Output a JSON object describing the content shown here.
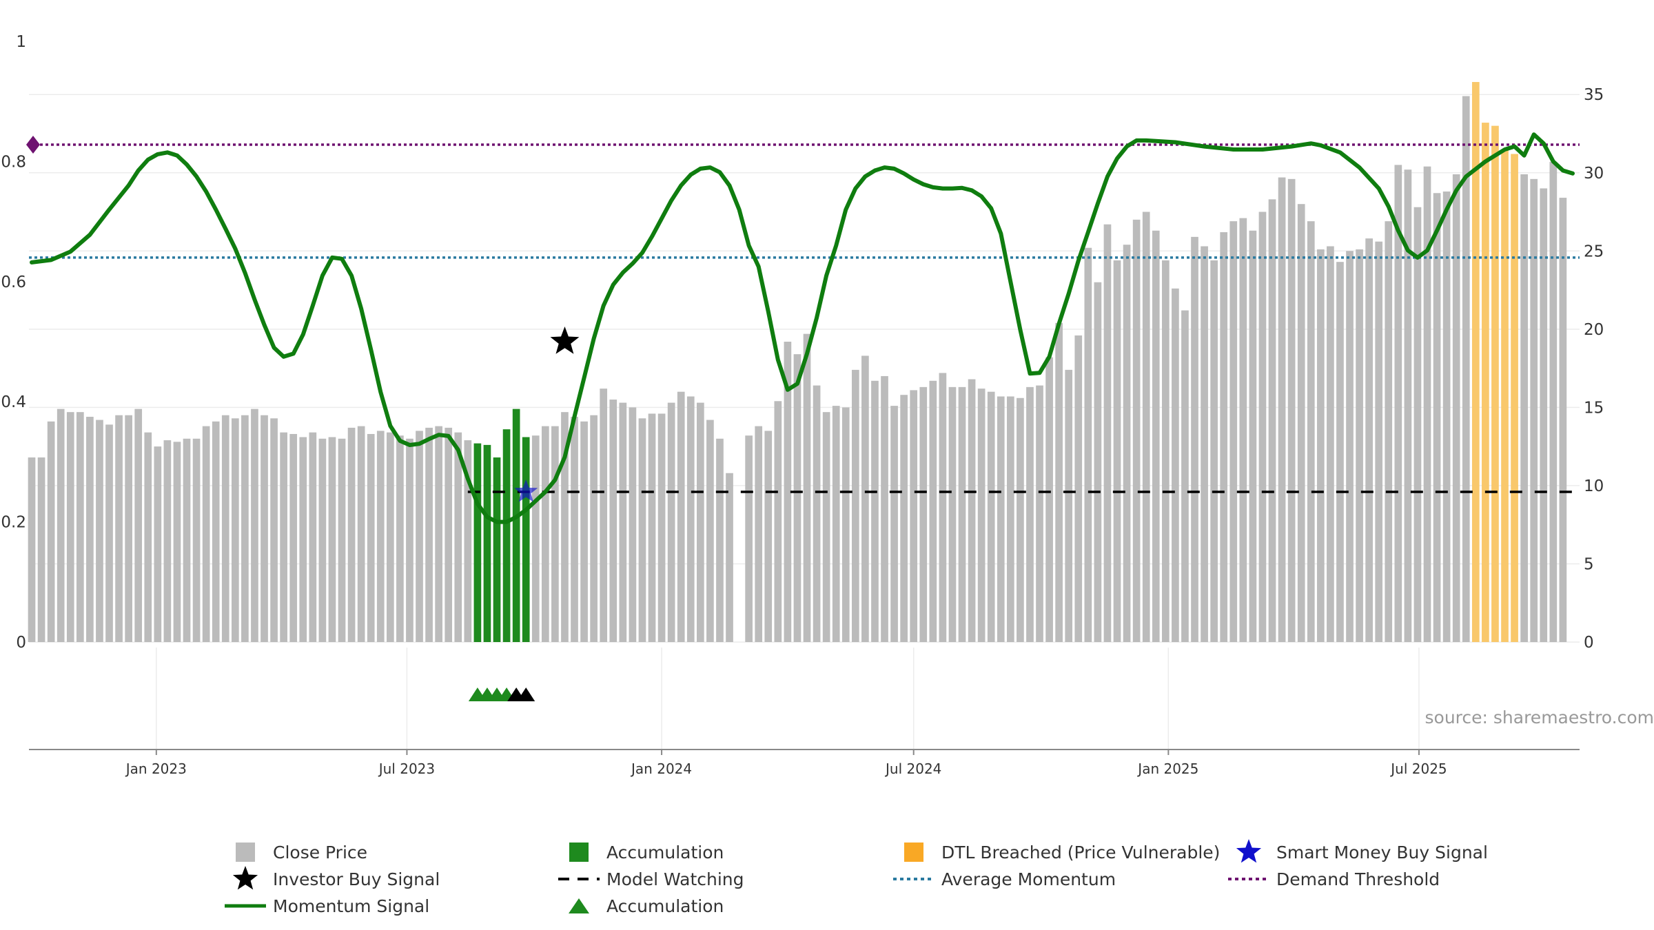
{
  "source_text": "source: sharemaestro.com",
  "chart_data": {
    "type": "bar",
    "title": "",
    "x_range": [
      "2022-10-01",
      "2025-10-25"
    ],
    "x_ticks": [
      {
        "date": "2023-01-01",
        "label": "Jan 2023"
      },
      {
        "date": "2023-07-01",
        "label": "Jul 2023"
      },
      {
        "date": "2024-01-01",
        "label": "Jan 2024"
      },
      {
        "date": "2024-07-01",
        "label": "Jul 2024"
      },
      {
        "date": "2025-01-01",
        "label": "Jan 2025"
      },
      {
        "date": "2025-07-01",
        "label": "Jul 2025"
      }
    ],
    "left_axis": {
      "ylim": [
        0,
        1
      ],
      "ticks": [
        0,
        0.2,
        0.4,
        0.6,
        0.8,
        1
      ],
      "tick_labels": [
        "0",
        "0.2",
        "0.4",
        "0.6",
        "0.8",
        "1"
      ]
    },
    "right_axis": {
      "ylim": [
        0,
        38.4
      ],
      "ticks": [
        0,
        5,
        10,
        15,
        20,
        25,
        30,
        35
      ],
      "tick_labels": [
        "0",
        "5",
        "10",
        "15",
        "20",
        "25",
        "30",
        "35"
      ]
    },
    "bar_start": "2022-10-03",
    "bar_step_days": 7,
    "close_price": [
      11.8,
      11.8,
      14.1,
      14.9,
      14.7,
      14.7,
      14.4,
      14.2,
      13.9,
      14.5,
      14.5,
      14.9,
      13.4,
      12.5,
      12.9,
      12.8,
      13,
      13,
      13.8,
      14.1,
      14.5,
      14.3,
      14.5,
      14.9,
      14.5,
      14.3,
      13.4,
      13.3,
      13.1,
      13.4,
      13,
      13.1,
      13,
      13.7,
      13.8,
      13.3,
      13.5,
      13.4,
      13.2,
      13,
      13.5,
      13.7,
      13.8,
      13.7,
      13.4,
      12.9,
      12.7,
      12.6,
      11.8,
      13.6,
      14.9,
      13.1,
      13.2,
      13.8,
      13.8,
      14.7,
      14.4,
      14.1,
      14.5,
      16.2,
      15.5,
      15.3,
      15.0,
      14.3,
      14.6,
      14.6,
      15.3,
      16,
      15.7,
      15.3,
      14.2,
      13,
      10.8,
      null,
      13.2,
      13.8,
      13.5,
      15.4,
      19.2,
      18.4,
      19.7,
      16.4,
      14.7,
      15.1,
      15,
      17.4,
      18.3,
      16.7,
      17,
      15.1,
      15.8,
      16.1,
      16.3,
      16.7,
      17.2,
      16.3,
      16.3,
      16.8,
      16.2,
      16,
      15.7,
      15.7,
      15.6,
      16.3,
      16.4,
      18.2,
      20.4,
      17.4,
      19.6,
      25.2,
      23,
      26.7,
      24.4,
      25.4,
      27,
      27.5,
      26.3,
      24.4,
      22.6,
      21.2,
      25.9,
      25.3,
      24.4,
      26.2,
      26.9,
      27.1,
      26.3,
      27.5,
      28.3,
      29.7,
      29.6,
      28,
      26.9,
      25.1,
      25.3,
      24.3,
      25,
      25.1,
      25.8,
      25.6,
      26.9,
      30.5,
      30.2,
      27.8,
      30.4,
      28.7,
      28.8,
      29.9,
      34.9,
      35.8,
      33.2,
      33,
      31.5,
      31.2,
      29.9,
      29.6,
      29,
      30.7,
      28.4
    ],
    "bar_colors": {
      "close": "#bbbbbb",
      "accumulation": "#1e8a1e",
      "dtl": "#f9c86b"
    },
    "accumulation_bar_indices": [
      46,
      47,
      48,
      49,
      50,
      51
    ],
    "dtl_bar_indices": [
      149,
      150,
      151,
      152,
      153
    ],
    "momentum_signal": [
      [
        0,
        0.632
      ],
      [
        2,
        0.636
      ],
      [
        4,
        0.65
      ],
      [
        6,
        0.678
      ],
      [
        8,
        0.72
      ],
      [
        10,
        0.76
      ],
      [
        11,
        0.785
      ],
      [
        12,
        0.803
      ],
      [
        13,
        0.812
      ],
      [
        14,
        0.815
      ],
      [
        15,
        0.81
      ],
      [
        16,
        0.795
      ],
      [
        17,
        0.775
      ],
      [
        18,
        0.75
      ],
      [
        19,
        0.72
      ],
      [
        20,
        0.688
      ],
      [
        21,
        0.655
      ],
      [
        22,
        0.615
      ],
      [
        23,
        0.57
      ],
      [
        24,
        0.528
      ],
      [
        25,
        0.49
      ],
      [
        26,
        0.475
      ],
      [
        27,
        0.48
      ],
      [
        28,
        0.512
      ],
      [
        29,
        0.56
      ],
      [
        30,
        0.61
      ],
      [
        31,
        0.64
      ],
      [
        32,
        0.638
      ],
      [
        33,
        0.61
      ],
      [
        34,
        0.555
      ],
      [
        35,
        0.487
      ],
      [
        36,
        0.416
      ],
      [
        37,
        0.36
      ],
      [
        38,
        0.335
      ],
      [
        39,
        0.328
      ],
      [
        40,
        0.33
      ],
      [
        41,
        0.338
      ],
      [
        42,
        0.345
      ],
      [
        43,
        0.343
      ],
      [
        44,
        0.32
      ],
      [
        45,
        0.272
      ],
      [
        46,
        0.23
      ],
      [
        47,
        0.208
      ],
      [
        48,
        0.2
      ],
      [
        49,
        0.2
      ],
      [
        50,
        0.208
      ],
      [
        51,
        0.22
      ],
      [
        52,
        0.235
      ],
      [
        53,
        0.25
      ],
      [
        54,
        0.27
      ],
      [
        55,
        0.308
      ],
      [
        56,
        0.375
      ],
      [
        57,
        0.44
      ],
      [
        58,
        0.505
      ],
      [
        59,
        0.56
      ],
      [
        60,
        0.595
      ],
      [
        61,
        0.615
      ],
      [
        62,
        0.63
      ],
      [
        63,
        0.648
      ],
      [
        64,
        0.675
      ],
      [
        65,
        0.705
      ],
      [
        66,
        0.735
      ],
      [
        67,
        0.76
      ],
      [
        68,
        0.778
      ],
      [
        69,
        0.788
      ],
      [
        70,
        0.79
      ],
      [
        71,
        0.782
      ],
      [
        72,
        0.76
      ],
      [
        73,
        0.72
      ],
      [
        74,
        0.66
      ],
      [
        75,
        0.625
      ],
      [
        76,
        0.55
      ],
      [
        77,
        0.47
      ],
      [
        78,
        0.42
      ],
      [
        79,
        0.43
      ],
      [
        80,
        0.48
      ],
      [
        81,
        0.54
      ],
      [
        82,
        0.61
      ],
      [
        83,
        0.66
      ],
      [
        84,
        0.72
      ],
      [
        85,
        0.755
      ],
      [
        86,
        0.775
      ],
      [
        87,
        0.785
      ],
      [
        88,
        0.79
      ],
      [
        89,
        0.788
      ],
      [
        90,
        0.78
      ],
      [
        91,
        0.77
      ],
      [
        92,
        0.762
      ],
      [
        93,
        0.757
      ],
      [
        94,
        0.755
      ],
      [
        95,
        0.755
      ],
      [
        96,
        0.756
      ],
      [
        97,
        0.752
      ],
      [
        98,
        0.742
      ],
      [
        99,
        0.722
      ],
      [
        100,
        0.68
      ],
      [
        101,
        0.6
      ],
      [
        102,
        0.52
      ],
      [
        103,
        0.447
      ],
      [
        104,
        0.448
      ],
      [
        105,
        0.475
      ],
      [
        106,
        0.53
      ],
      [
        107,
        0.58
      ],
      [
        108,
        0.635
      ],
      [
        109,
        0.682
      ],
      [
        110,
        0.73
      ],
      [
        111,
        0.775
      ],
      [
        112,
        0.805
      ],
      [
        113,
        0.825
      ],
      [
        114,
        0.835
      ],
      [
        115,
        0.835
      ],
      [
        118,
        0.832
      ],
      [
        121,
        0.825
      ],
      [
        124,
        0.82
      ],
      [
        127,
        0.82
      ],
      [
        130,
        0.825
      ],
      [
        132,
        0.83
      ],
      [
        133,
        0.827
      ],
      [
        135,
        0.815
      ],
      [
        137,
        0.79
      ],
      [
        139,
        0.755
      ],
      [
        140,
        0.725
      ],
      [
        141,
        0.685
      ],
      [
        142,
        0.652
      ],
      [
        143,
        0.64
      ],
      [
        144,
        0.652
      ],
      [
        145,
        0.685
      ],
      [
        146,
        0.72
      ],
      [
        147,
        0.752
      ],
      [
        148,
        0.775
      ],
      [
        150,
        0.8
      ],
      [
        152,
        0.82
      ],
      [
        153,
        0.825
      ],
      [
        154,
        0.81
      ],
      [
        155,
        0.845
      ],
      [
        156,
        0.83
      ],
      [
        157,
        0.8
      ],
      [
        158,
        0.785
      ],
      [
        159,
        0.78
      ]
    ],
    "average_momentum": 0.64,
    "demand_threshold": 0.828,
    "model_watching": {
      "value": 0.25,
      "from_index": 45,
      "to_index": 159
    },
    "investor_buy_signal": {
      "index": 55,
      "value": 0.5
    },
    "smart_money_buy_signal": {
      "index": 51,
      "value": 0.25
    },
    "accumulation_markers": [
      {
        "index": 46,
        "color": "#1e8a1e"
      },
      {
        "index": 47,
        "color": "#1e8a1e"
      },
      {
        "index": 48,
        "color": "#1e8a1e"
      },
      {
        "index": 49,
        "color": "#1e8a1e"
      },
      {
        "index": 50,
        "color": "#000000"
      },
      {
        "index": 51,
        "color": "#000000"
      }
    ],
    "colors": {
      "momentum": "#0f7d0f",
      "average_momentum": "#2a7aa0",
      "demand_threshold": "#6e1270",
      "model_watching": "#000000",
      "smart_money": "#1010cc",
      "investor": "#000000"
    },
    "legend": [
      {
        "label": "Close Price",
        "symbol": "square",
        "color": "#bbbbbb"
      },
      {
        "label": "Accumulation",
        "symbol": "square",
        "color": "#1e8a1e"
      },
      {
        "label": "DTL Breached (Price Vulnerable)",
        "symbol": "square",
        "color": "#f9a825"
      },
      {
        "label": "Smart Money Buy Signal",
        "symbol": "star",
        "color": "#1010cc"
      },
      {
        "label": "Investor Buy Signal",
        "symbol": "star",
        "color": "#000000"
      },
      {
        "label": "Model Watching",
        "symbol": "dash",
        "color": "#000000"
      },
      {
        "label": "Average Momentum",
        "symbol": "dot",
        "color": "#2a7aa0"
      },
      {
        "label": "Demand Threshold",
        "symbol": "dot",
        "color": "#6e1270"
      },
      {
        "label": "Momentum Signal",
        "symbol": "line",
        "color": "#0f7d0f"
      },
      {
        "label": "Accumulation",
        "symbol": "triangle",
        "color": "#1e8a1e"
      }
    ]
  }
}
